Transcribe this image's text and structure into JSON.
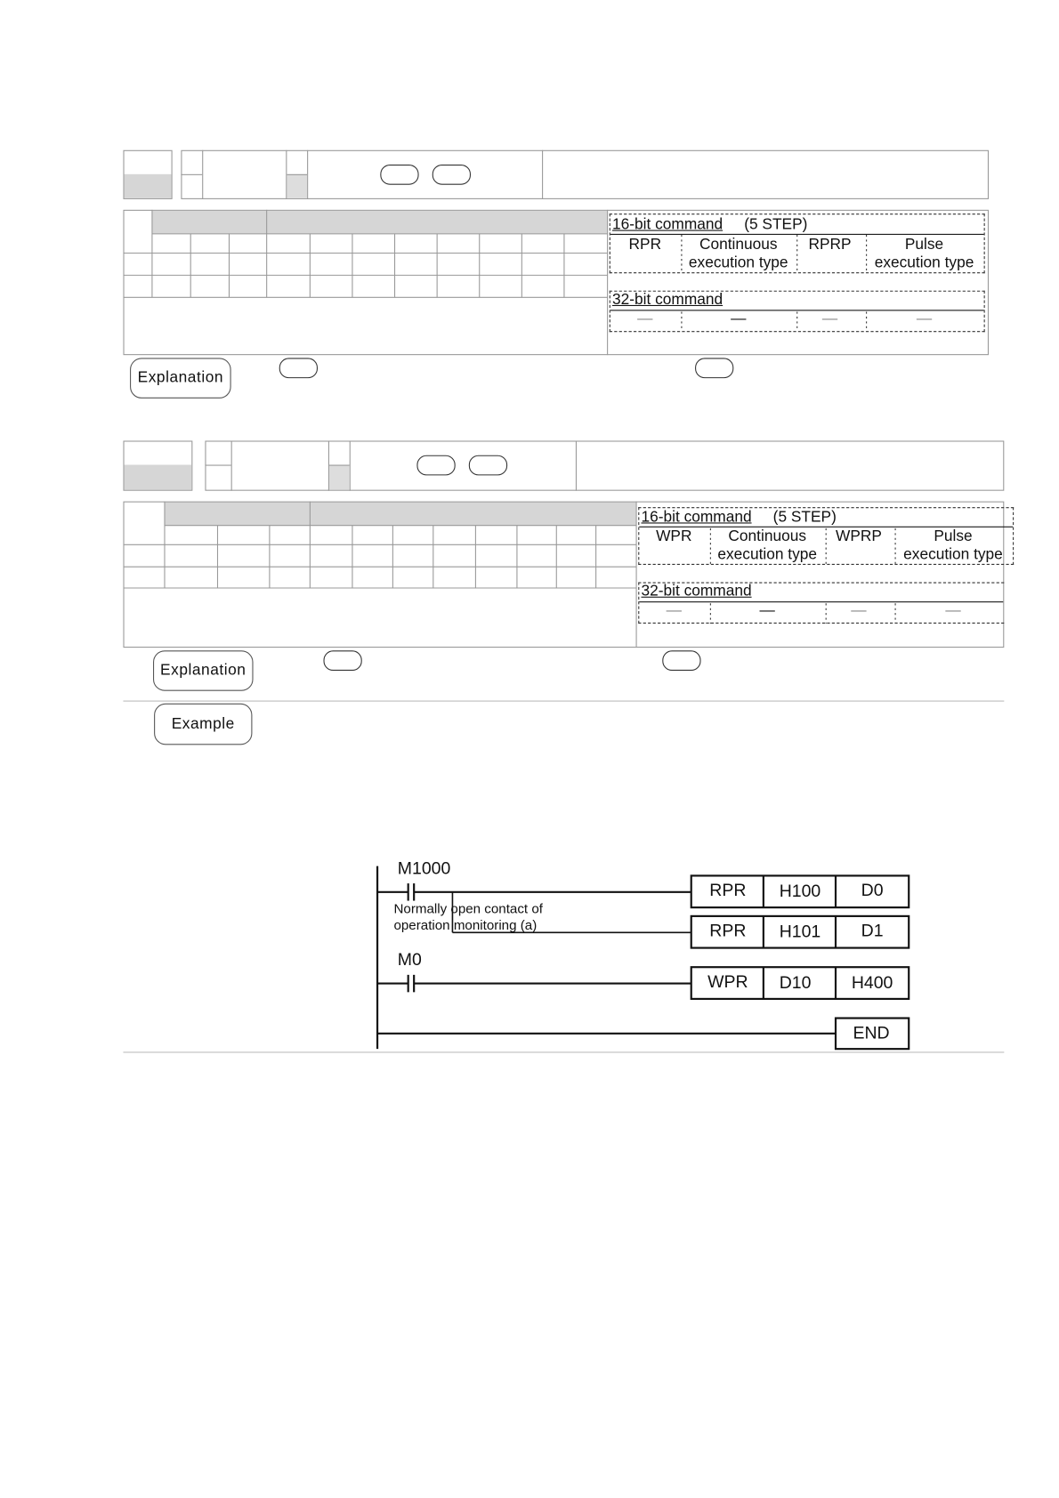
{
  "block_rpr": {
    "cmd16_label": "16-bit command",
    "cmd16_steps": "(5 STEP)",
    "cont_name": "RPR",
    "cont_type": [
      "Continuous",
      "execution type"
    ],
    "pulse_name": "RPRP",
    "pulse_type": [
      "Pulse",
      "execution type"
    ],
    "cmd32_label": "32-bit command",
    "cmd32_values": [
      "—",
      "—",
      "—",
      "—"
    ],
    "explanation_label": "Explanation"
  },
  "block_wpr": {
    "cmd16_label": "16-bit command",
    "cmd16_steps": "(5 STEP)",
    "cont_name": "WPR",
    "cont_type": [
      "Continuous",
      "execution type"
    ],
    "pulse_name": "WPRP",
    "pulse_type": [
      "Pulse",
      "execution type"
    ],
    "cmd32_label": "32-bit command",
    "cmd32_values": [
      "—",
      "—",
      "—",
      "—"
    ],
    "explanation_label": "Explanation",
    "example_label": "Example"
  },
  "ladder": {
    "rung1_contact": "M1000",
    "annotation": [
      "Normally open contact of",
      "operation monitoring (a)"
    ],
    "rung1_instr": [
      "RPR",
      "H100",
      "D0"
    ],
    "rung1b_instr": [
      "RPR",
      "H101",
      "D1"
    ],
    "rung2_contact": "M0",
    "rung2_instr": [
      "WPR",
      "D10",
      "H400"
    ],
    "end_label": "END"
  }
}
